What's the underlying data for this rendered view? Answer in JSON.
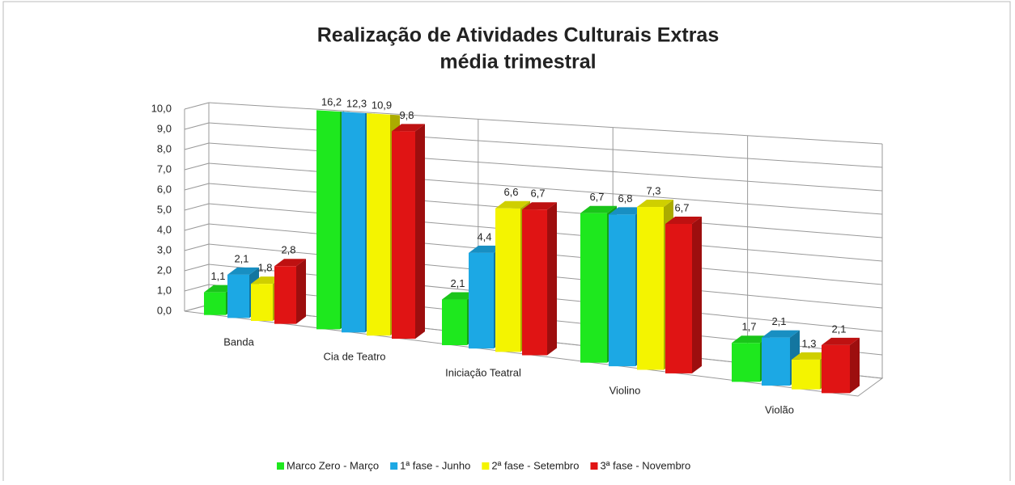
{
  "chart_data": {
    "type": "bar3d",
    "title": "Realização de Atividades Culturais Extras",
    "subtitle": "média trimestral",
    "categories": [
      "Banda",
      "Cia de Teatro",
      "Iniciação Teatral",
      "Violino",
      "Violão"
    ],
    "series": [
      {
        "name": "Marco Zero - Março",
        "color": "#1ee81e",
        "values": [
          1.1,
          16.2,
          2.1,
          6.7,
          1.7
        ],
        "value_labels": [
          "1,1",
          "16,2",
          "2,1",
          "6,7",
          "1,7"
        ]
      },
      {
        "name": "1ª fase - Junho",
        "color": "#1ca8e4",
        "values": [
          2.1,
          12.3,
          4.4,
          6.8,
          2.1
        ],
        "value_labels": [
          "2,1",
          "12,3",
          "4,4",
          "6,8",
          "2,1"
        ]
      },
      {
        "name": "2ª fase - Setembro",
        "color": "#f4f400",
        "values": [
          1.8,
          10.9,
          6.6,
          7.3,
          1.3
        ],
        "value_labels": [
          "1,8",
          "10,9",
          "6,6",
          "7,3",
          "1,3"
        ]
      },
      {
        "name": "3ª fase - Novembro",
        "color": "#e01414",
        "values": [
          2.8,
          9.8,
          6.7,
          6.7,
          2.1
        ],
        "value_labels": [
          "2,8",
          "9,8",
          "6,7",
          "6,7",
          "2,1"
        ]
      }
    ],
    "ylim": [
      0,
      10
    ],
    "yticks": [
      {
        "value": 0,
        "label": "0,0"
      },
      {
        "value": 1,
        "label": "1,0"
      },
      {
        "value": 2,
        "label": "2,0"
      },
      {
        "value": 3,
        "label": "3,0"
      },
      {
        "value": 4,
        "label": "4,0"
      },
      {
        "value": 5,
        "label": "5,0"
      },
      {
        "value": 6,
        "label": "6,0"
      },
      {
        "value": 7,
        "label": "7,0"
      },
      {
        "value": 8,
        "label": "8,0"
      },
      {
        "value": 9,
        "label": "9,0"
      },
      {
        "value": 10,
        "label": "10,0"
      }
    ],
    "grid": true,
    "legend": "bottom"
  }
}
